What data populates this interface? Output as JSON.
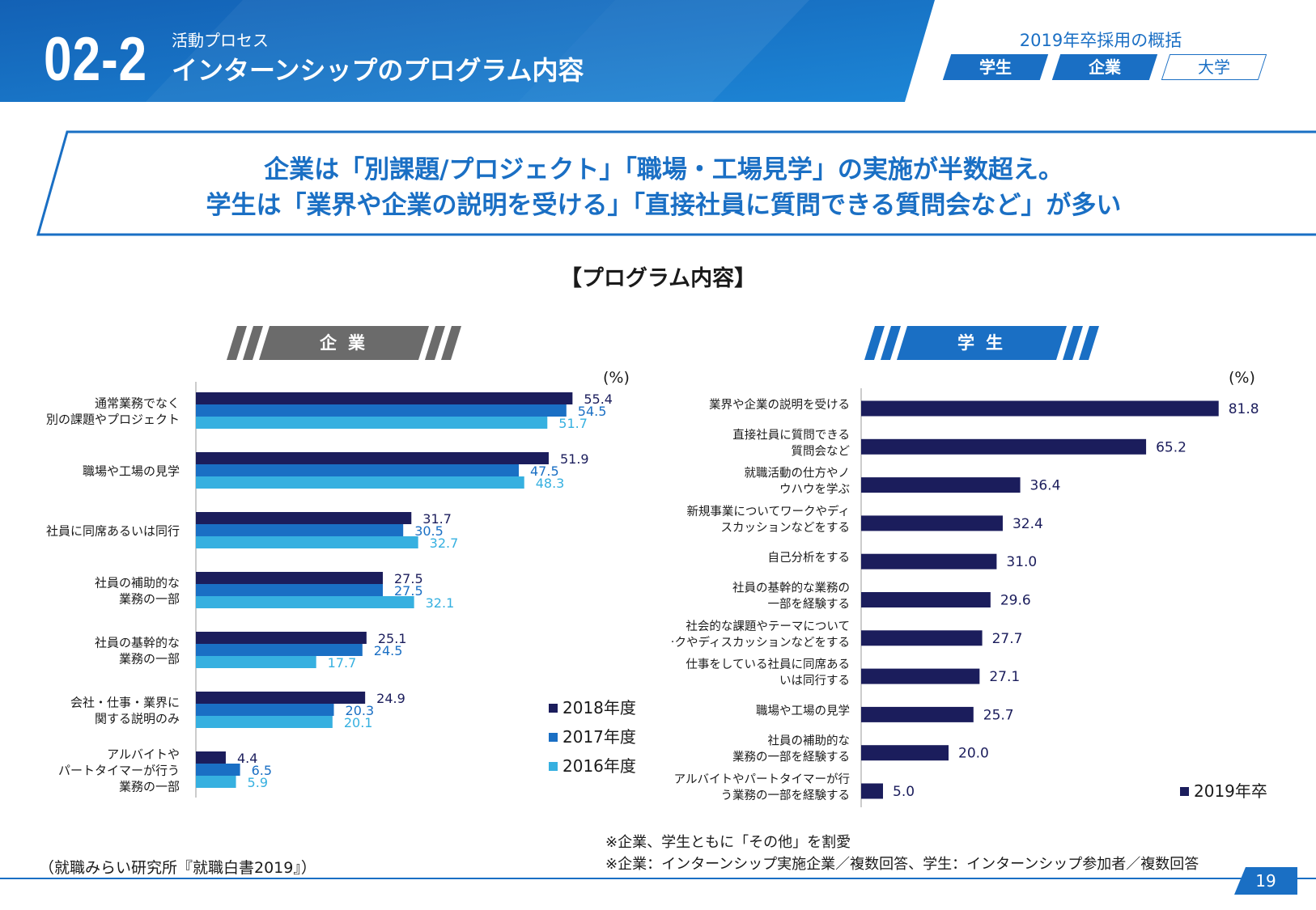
{
  "header": {
    "section_number": "02-2",
    "section_subtitle": "活動プロセス",
    "section_title": "インターンシップのプログラム内容",
    "overview_title": "2019年卒採用の概括",
    "tags": [
      "学生",
      "企業",
      "大学"
    ]
  },
  "headline": {
    "line1": "企業は「別課題/プロジェクト」「職場・工場見学」の実施が半数超え。",
    "line2": "学生は「業界や企業の説明を受ける」「直接社員に質問できる質問会など」が多い"
  },
  "chart_title": "【プログラム内容】",
  "colors": {
    "dark": "#1b1d5c",
    "mid": "#1a6fc4",
    "light": "#36b0e0",
    "gray": "#6b6b6b"
  },
  "chart_data": [
    {
      "type": "bar",
      "orientation": "horizontal",
      "title": "企業",
      "unit_label": "(%)",
      "categories": [
        "通常業務でなく\n別の課題やプロジェクト",
        "職場や工場の見学",
        "社員に同席あるいは同行",
        "社員の補助的な\n業務の一部",
        "社員の基幹的な\n業務の一部",
        "会社・仕事・業界に\n関する説明のみ",
        "アルバイトや\nパートタイマーが行う\n業務の一部"
      ],
      "series": [
        {
          "name": "2018年度",
          "values": [
            55.4,
            51.9,
            31.7,
            27.5,
            25.1,
            24.9,
            4.4
          ]
        },
        {
          "name": "2017年度",
          "values": [
            54.5,
            47.5,
            30.5,
            27.5,
            24.5,
            20.3,
            6.5
          ]
        },
        {
          "name": "2016年度",
          "values": [
            51.7,
            48.3,
            32.7,
            32.1,
            17.7,
            20.1,
            5.9
          ]
        }
      ],
      "xlim": [
        0,
        100
      ],
      "legend_position": "bottom-right"
    },
    {
      "type": "bar",
      "orientation": "horizontal",
      "title": "学生",
      "unit_label": "(%)",
      "categories": [
        "業界や企業の説明を受ける",
        "直接社員に質問できる\n質問会など",
        "就職活動の仕方やノ\nウハウを学ぶ",
        "新規事業についてワークやディ\nスカッションなどをする",
        "自己分析をする",
        "社員の基幹的な業務の\n一部を経験する",
        "社会的な課題やテーマについて\nワークやディスカッションなどをする",
        "仕事をしている社員に同席ある\nいは同行する",
        "職場や工場の見学",
        "社員の補助的な\n業務の一部を経験する",
        "アルバイトやパートタイマーが行\nう業務の一部を経験する"
      ],
      "series": [
        {
          "name": "2019年卒",
          "values": [
            81.8,
            65.2,
            36.4,
            32.4,
            31.0,
            29.6,
            27.7,
            27.1,
            25.7,
            20.0,
            5.0
          ]
        }
      ],
      "xlim": [
        0,
        100
      ],
      "legend_position": "bottom-right"
    }
  ],
  "notes": {
    "note1": "※企業、学生ともに「その他」を割愛",
    "note2": "※企業：インターンシップ実施企業／複数回答、学生：インターンシップ参加者／複数回答",
    "source": "（就職みらい研究所『就職白書2019』）"
  },
  "page_number": "19"
}
